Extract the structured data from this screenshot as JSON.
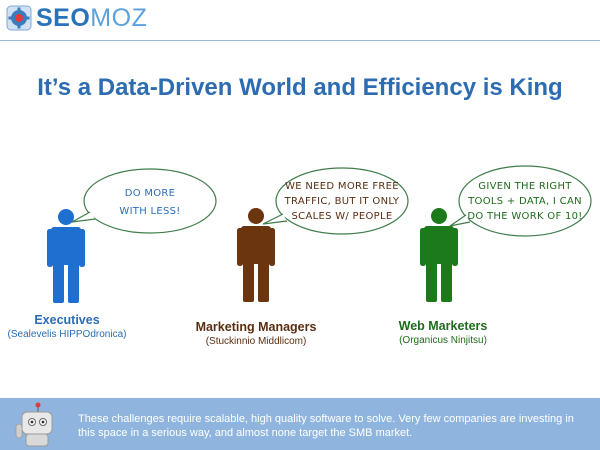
{
  "brand": {
    "logo_primary": "SEO",
    "logo_secondary": "MOZ",
    "primary_color": "#2a72b9",
    "secondary_color": "#5aa2dc"
  },
  "slide": {
    "title": "It’s a Data-Driven World and Efficiency is King"
  },
  "personas": [
    {
      "bubble_lines": [
        "DO MORE",
        "WITH LESS!"
      ],
      "name": "Executives",
      "subtitle": "(Sealevelis HIPPOdronica)",
      "color": "#1e6fcf",
      "name_color": "#2a6db5",
      "icon": "person-icon"
    },
    {
      "bubble_lines": [
        "WE NEED MORE FREE",
        "TRAFFIC, BUT IT ONLY",
        "SCALES W/ PEOPLE"
      ],
      "name": "Marketing Managers",
      "subtitle": "(Stuckinnio Middlicom)",
      "color": "#6b3510",
      "name_color": "#5a2e12",
      "icon": "person-icon"
    },
    {
      "bubble_lines": [
        "GIVEN THE RIGHT",
        "TOOLS + DATA, I CAN",
        "DO THE WORK OF 10!"
      ],
      "name": "Web Marketers",
      "subtitle": "(Organicus Ninjitsu)",
      "color": "#1d7a1a",
      "name_color": "#1f6b1c",
      "icon": "person-icon"
    }
  ],
  "footer": {
    "text": "These challenges require scalable, high quality software to solve. Very few companies are investing in this space in a serious way, and almost none target the SMB market.",
    "background": "#8fb5de",
    "icon": "robot-icon"
  }
}
